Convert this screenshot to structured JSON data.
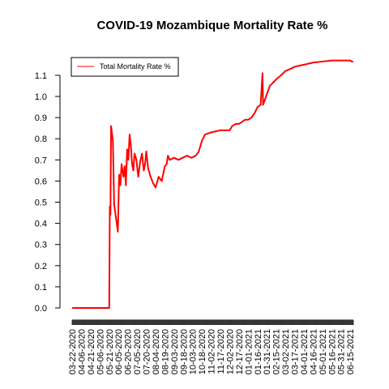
{
  "chart_data": {
    "type": "line",
    "title": "COVID-19 Mozambique Mortality Rate %",
    "xlabel": "",
    "ylabel": "",
    "ylim": [
      0,
      1.18
    ],
    "y_ticks": [
      0.0,
      0.1,
      0.2,
      0.3,
      0.4,
      0.5,
      0.6,
      0.7,
      0.8,
      0.9,
      1.0,
      1.1
    ],
    "y_tick_labels": [
      "0.0",
      "0.1",
      "0.2",
      "0.3",
      "0.4",
      "0.5",
      "0.6",
      "0.7",
      "0.8",
      "0.9",
      "1.0",
      "1.1"
    ],
    "x_tick_labels": [
      "03-22-2020",
      "04-06-2020",
      "04-21-2020",
      "05-06-2020",
      "05-21-2020",
      "06-05-2020",
      "06-20-2020",
      "07-05-2020",
      "07-20-2020",
      "08-04-2020",
      "08-19-2020",
      "09-03-2020",
      "09-18-2020",
      "10-03-2020",
      "10-18-2020",
      "11-02-2020",
      "11-17-2020",
      "12-02-2020",
      "12-17-2020",
      "01-01-2021",
      "01-16-2021",
      "01-31-2021",
      "02-15-2021",
      "03-02-2021",
      "03-17-2021",
      "04-01-2021",
      "04-16-2021",
      "05-01-2021",
      "05-16-2021",
      "05-31-2021",
      "06-15-2021"
    ],
    "grid": false,
    "legend_position": "top-left",
    "series": [
      {
        "name": "Total Mortality Rate %",
        "color": "#ff0000",
        "points": [
          [
            "03-22-2020",
            0.0
          ],
          [
            "05-21-2020",
            0.0
          ],
          [
            "05-22-2020",
            0.48
          ],
          [
            "05-23-2020",
            0.44
          ],
          [
            "05-24-2020",
            0.86
          ],
          [
            "05-27-2020",
            0.79
          ],
          [
            "05-29-2020",
            0.49
          ],
          [
            "06-04-2020",
            0.36
          ],
          [
            "06-06-2020",
            0.63
          ],
          [
            "06-08-2020",
            0.58
          ],
          [
            "06-10-2020",
            0.68
          ],
          [
            "06-13-2020",
            0.62
          ],
          [
            "06-15-2020",
            0.67
          ],
          [
            "06-17-2020",
            0.58
          ],
          [
            "06-19-2020",
            0.75
          ],
          [
            "06-21-2020",
            0.7
          ],
          [
            "06-23-2020",
            0.82
          ],
          [
            "06-25-2020",
            0.77
          ],
          [
            "06-27-2020",
            0.68
          ],
          [
            "06-29-2020",
            0.65
          ],
          [
            "07-01-2020",
            0.73
          ],
          [
            "07-04-2020",
            0.7
          ],
          [
            "07-07-2020",
            0.62
          ],
          [
            "07-10-2020",
            0.69
          ],
          [
            "07-13-2020",
            0.73
          ],
          [
            "07-16-2020",
            0.65
          ],
          [
            "07-18-2020",
            0.68
          ],
          [
            "07-20-2020",
            0.74
          ],
          [
            "07-23-2020",
            0.66
          ],
          [
            "07-27-2020",
            0.62
          ],
          [
            "07-31-2020",
            0.59
          ],
          [
            "08-04-2020",
            0.57
          ],
          [
            "08-09-2020",
            0.62
          ],
          [
            "08-14-2020",
            0.6
          ],
          [
            "08-19-2020",
            0.67
          ],
          [
            "08-22-2020",
            0.68
          ],
          [
            "08-24-2020",
            0.72
          ],
          [
            "08-27-2020",
            0.7
          ],
          [
            "09-03-2020",
            0.71
          ],
          [
            "09-10-2020",
            0.7
          ],
          [
            "09-17-2020",
            0.71
          ],
          [
            "09-24-2020",
            0.72
          ],
          [
            "10-01-2020",
            0.71
          ],
          [
            "10-08-2020",
            0.72
          ],
          [
            "10-13-2020",
            0.74
          ],
          [
            "10-18-2020",
            0.79
          ],
          [
            "10-23-2020",
            0.82
          ],
          [
            "11-02-2020",
            0.83
          ],
          [
            "11-17-2020",
            0.84
          ],
          [
            "12-02-2020",
            0.84
          ],
          [
            "12-06-2020",
            0.86
          ],
          [
            "12-12-2020",
            0.87
          ],
          [
            "12-17-2020",
            0.87
          ],
          [
            "12-22-2020",
            0.88
          ],
          [
            "12-27-2020",
            0.89
          ],
          [
            "01-01-2021",
            0.89
          ],
          [
            "01-06-2021",
            0.9
          ],
          [
            "01-11-2021",
            0.92
          ],
          [
            "01-16-2021",
            0.95
          ],
          [
            "01-21-2021",
            0.96
          ],
          [
            "01-24-2021",
            1.11
          ],
          [
            "01-25-2021",
            0.96
          ],
          [
            "01-31-2021",
            1.01
          ],
          [
            "02-05-2021",
            1.05
          ],
          [
            "02-15-2021",
            1.08
          ],
          [
            "02-23-2021",
            1.1
          ],
          [
            "03-02-2021",
            1.12
          ],
          [
            "03-10-2021",
            1.13
          ],
          [
            "03-17-2021",
            1.14
          ],
          [
            "03-24-2021",
            1.145
          ],
          [
            "04-01-2021",
            1.15
          ],
          [
            "04-16-2021",
            1.16
          ],
          [
            "05-01-2021",
            1.165
          ],
          [
            "05-16-2021",
            1.17
          ],
          [
            "05-31-2021",
            1.17
          ],
          [
            "06-15-2021",
            1.17
          ],
          [
            "06-17-2021",
            1.165
          ],
          [
            "06-20-2021",
            1.165
          ]
        ]
      }
    ]
  }
}
